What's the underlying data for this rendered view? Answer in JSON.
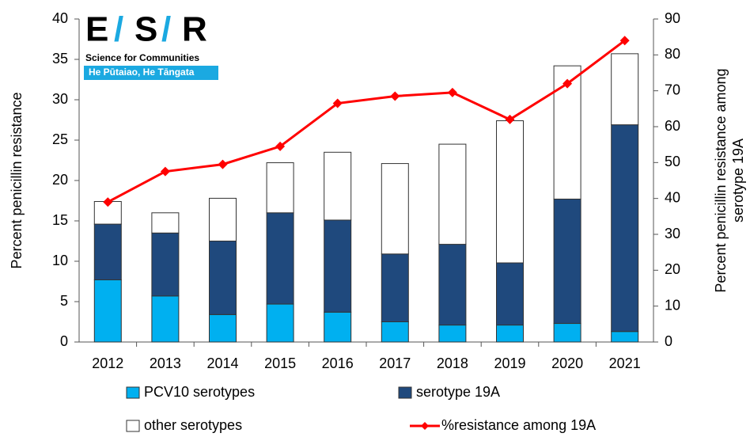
{
  "logo": {
    "mark": [
      "E",
      "/",
      "S",
      "/",
      "R"
    ],
    "tagline": "Science for Communities",
    "motto": "He Pūtaiao, He Tāngata"
  },
  "chart_data": {
    "type": "bar",
    "stacked": true,
    "ylabel": "Percent penicillin resistance",
    "y2label": [
      "Percent penicillin resistance among",
      "serotype 19A"
    ],
    "categories": [
      "2012",
      "2013",
      "2014",
      "2015",
      "2016",
      "2017",
      "2018",
      "2019",
      "2020",
      "2021"
    ],
    "series": [
      {
        "name": "PCV10 serotypes",
        "color": "#00b0f0",
        "values": [
          7.7,
          5.7,
          3.4,
          4.7,
          3.7,
          2.5,
          2.1,
          2.1,
          2.3,
          1.3
        ]
      },
      {
        "name": "serotype 19A",
        "color": "#1f497d",
        "values": [
          6.9,
          7.8,
          9.1,
          11.3,
          11.4,
          8.4,
          10.0,
          7.7,
          15.4,
          25.6
        ]
      },
      {
        "name": "other serotypes",
        "color": "#ffffff",
        "values": [
          2.8,
          2.5,
          5.3,
          6.2,
          8.4,
          11.2,
          12.4,
          17.6,
          16.5,
          8.8
        ]
      },
      {
        "name": "%resistance among 19A",
        "color": "#ff0000",
        "type": "line",
        "axis": "y2",
        "values": [
          39,
          47.5,
          49.5,
          54.5,
          66.5,
          68.5,
          69.5,
          62,
          72,
          84
        ]
      }
    ],
    "ylim": [
      0,
      40
    ],
    "yticks": [
      0,
      5,
      10,
      15,
      20,
      25,
      30,
      35,
      40
    ],
    "y2lim": [
      0,
      90
    ],
    "y2ticks": [
      0,
      10,
      20,
      30,
      40,
      50,
      60,
      70,
      80,
      90
    ],
    "grid": false,
    "legend": "bottom"
  }
}
